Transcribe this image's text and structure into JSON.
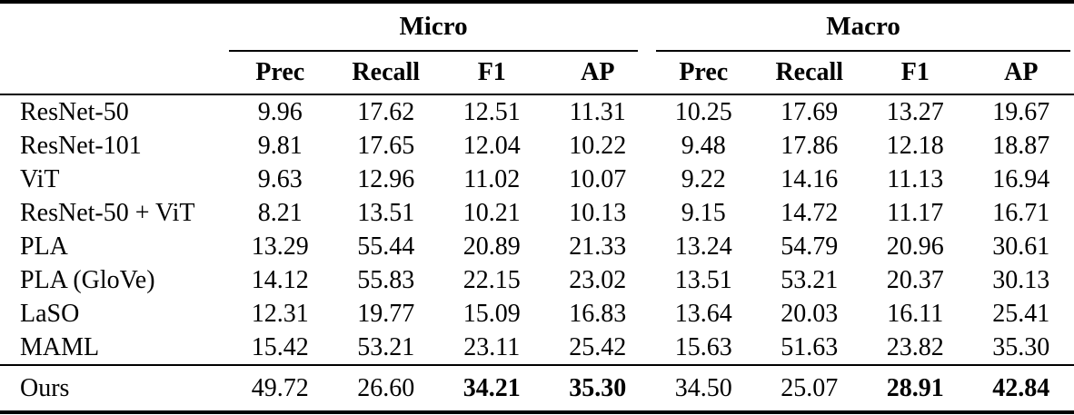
{
  "table": {
    "group_headers": [
      {
        "label": "Micro"
      },
      {
        "label": "Macro"
      }
    ],
    "sub_headers": [
      "Prec",
      "Recall",
      "F1",
      "AP",
      "Prec",
      "Recall",
      "F1",
      "AP"
    ],
    "rows": [
      {
        "method": "ResNet-50",
        "values": [
          "9.96",
          "17.62",
          "12.51",
          "11.31",
          "10.25",
          "17.69",
          "13.27",
          "19.67"
        ]
      },
      {
        "method": "ResNet-101",
        "values": [
          "9.81",
          "17.65",
          "12.04",
          "10.22",
          "9.48",
          "17.86",
          "12.18",
          "18.87"
        ]
      },
      {
        "method": "ViT",
        "values": [
          "9.63",
          "12.96",
          "11.02",
          "10.07",
          "9.22",
          "14.16",
          "11.13",
          "16.94"
        ]
      },
      {
        "method": "ResNet-50 + ViT",
        "values": [
          "8.21",
          "13.51",
          "10.21",
          "10.13",
          "9.15",
          "14.72",
          "11.17",
          "16.71"
        ]
      },
      {
        "method": "PLA",
        "values": [
          "13.29",
          "55.44",
          "20.89",
          "21.33",
          "13.24",
          "54.79",
          "20.96",
          "30.61"
        ]
      },
      {
        "method": "PLA (GloVe)",
        "values": [
          "14.12",
          "55.83",
          "22.15",
          "23.02",
          "13.51",
          "53.21",
          "20.37",
          "30.13"
        ]
      },
      {
        "method": "LaSO",
        "values": [
          "12.31",
          "19.77",
          "15.09",
          "16.83",
          "13.64",
          "20.03",
          "16.11",
          "25.41"
        ]
      },
      {
        "method": "MAML",
        "values": [
          "15.42",
          "53.21",
          "23.11",
          "25.42",
          "15.63",
          "51.63",
          "23.82",
          "35.30"
        ]
      }
    ],
    "ours_row": {
      "method": "Ours",
      "values": [
        "49.72",
        "26.60",
        "34.21",
        "35.30",
        "34.50",
        "25.07",
        "28.91",
        "42.84"
      ],
      "bold": [
        false,
        false,
        true,
        true,
        false,
        false,
        true,
        true
      ]
    },
    "text_color": "#000000",
    "background_color": "#ffffff"
  }
}
